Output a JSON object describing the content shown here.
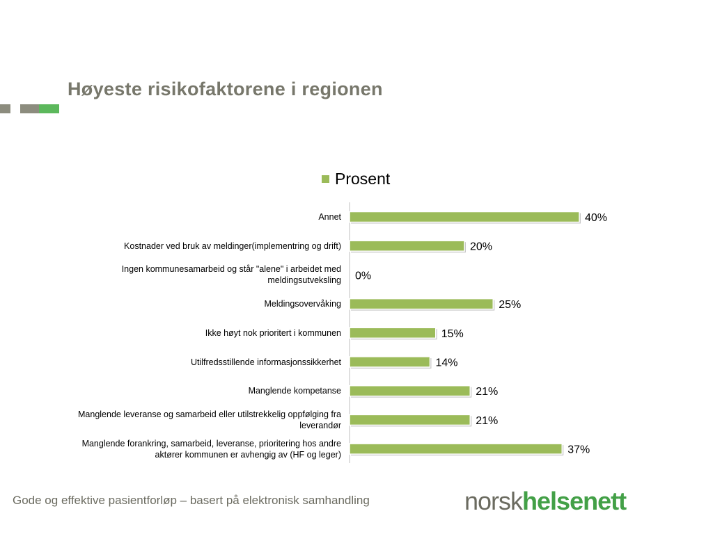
{
  "page": {
    "title": "Høyeste risikofaktorene i regionen",
    "footer": "Gode og effektive pasientforløp – basert på elektronisk samhandling",
    "logo": {
      "part1": "norsk",
      "part2": "helsenett"
    }
  },
  "colors": {
    "title": "#77776b",
    "footer": "#6b6b60",
    "bar": "#9bbb59",
    "bar_shadow": "#c8c8c8",
    "axis": "#bfbfbf",
    "deco_gray": "#8c8c7e",
    "deco_green": "#5cb85c",
    "logo_gray": "#6b6b60",
    "logo_green": "#43a047"
  },
  "chart_data": {
    "type": "bar",
    "orientation": "horizontal",
    "categories": [
      "Annet",
      "Kostnader ved bruk av meldinger(implementring og drift)",
      "Ingen kommunesamarbeid og står \"alene\" i arbeidet med meldingsutveksling",
      "Meldingsovervåking",
      "Ikke høyt nok prioritert i kommunen",
      "Utilfredsstillende informasjonssikkerhet",
      "Manglende kompetanse",
      "Manglende leveranse og samarbeid eller utilstrekkelig oppfølging fra leverandør",
      "Manglende forankring, samarbeid, leveranse, prioritering hos andre aktører kommunen er avhengig av (HF og leger)"
    ],
    "series": [
      {
        "name": "Prosent",
        "values": [
          40,
          20,
          0,
          25,
          15,
          14,
          21,
          21,
          37
        ]
      }
    ],
    "data_labels": [
      "40%",
      "20%",
      "0%",
      "25%",
      "15%",
      "14%",
      "21%",
      "21%",
      "37%"
    ],
    "xlim": [
      0,
      40
    ],
    "legend_position": "top",
    "grid": false
  }
}
